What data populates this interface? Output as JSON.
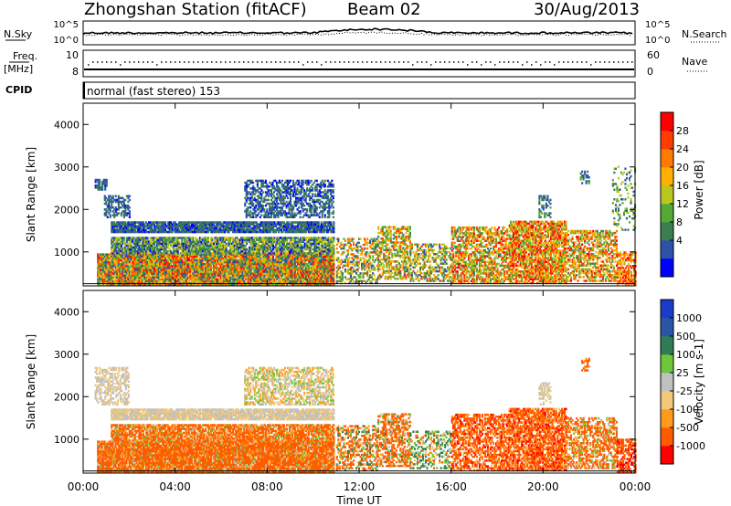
{
  "header": {
    "station": "Zhongshan Station (fitACF)",
    "beam": "Beam 02",
    "date": "30/Aug/2013"
  },
  "status_panels": {
    "nsky_label": "N.Sky",
    "nsearch_label": "N.Search",
    "nsky_ticks": [
      "10^5",
      "10^0"
    ],
    "freq_label_1": "Freq.",
    "freq_label_2": "[MHz]",
    "freq_ticks": [
      "10",
      "8"
    ],
    "nave_label": "Nave",
    "nave_ticks": [
      "60",
      "0"
    ],
    "cpid_label": "CPID",
    "cpid_text": "normal (fast stereo) 153"
  },
  "colors": {
    "power": [
      "#0000ff",
      "#2c53a8",
      "#3b7e52",
      "#55aa33",
      "#b8c81e",
      "#ffb000",
      "#ff7a00",
      "#ff3c00",
      "#ff0000"
    ],
    "velocity": [
      "#ff0000",
      "#ff5c00",
      "#ff9b1c",
      "#f0c878",
      "#c0c0c0",
      "#6fc63a",
      "#2f7d55",
      "#2a55a5",
      "#1c3cc8"
    ]
  },
  "chart_data": [
    {
      "type": "heatmap",
      "name": "power",
      "xlabel": "Time UT",
      "ylabel": "Slant Range [km]",
      "xlim": [
        0,
        24
      ],
      "ylim": [
        200,
        4500
      ],
      "x_ticks": [
        "00:00",
        "04:00",
        "08:00",
        "12:00",
        "16:00",
        "20:00",
        "00:00"
      ],
      "y_ticks": [
        1000,
        2000,
        3000,
        4000
      ],
      "colorbar": {
        "label": "Power [dB]",
        "ticks": [
          "28",
          "24",
          "20",
          "16",
          "12",
          "8",
          "4"
        ],
        "range": [
          0,
          30
        ]
      },
      "regions": [
        {
          "t": [
            0.6,
            10.9
          ],
          "r": [
            200,
            950
          ],
          "v": 16,
          "spread": 12,
          "density": 0.95
        },
        {
          "t": [
            1.2,
            10.9
          ],
          "r": [
            950,
            1350
          ],
          "v": 10,
          "spread": 8,
          "density": 0.85
        },
        {
          "t": [
            1.2,
            10.9
          ],
          "r": [
            1450,
            1700
          ],
          "v": 6,
          "spread": 4,
          "density": 0.9
        },
        {
          "t": [
            0.9,
            2.0
          ],
          "r": [
            1800,
            2300
          ],
          "v": 6,
          "spread": 3,
          "density": 0.5
        },
        {
          "t": [
            7.0,
            10.9
          ],
          "r": [
            1800,
            2700
          ],
          "v": 6,
          "spread": 4,
          "density": 0.55
        },
        {
          "t": [
            0.5,
            1.0
          ],
          "r": [
            2450,
            2700
          ],
          "v": 6,
          "spread": 3,
          "density": 0.6
        },
        {
          "t": [
            11.0,
            12.8
          ],
          "r": [
            250,
            1300
          ],
          "v": 14,
          "spread": 10,
          "density": 0.45
        },
        {
          "t": [
            12.8,
            14.2
          ],
          "r": [
            350,
            1600
          ],
          "v": 16,
          "spread": 10,
          "density": 0.55
        },
        {
          "t": [
            14.2,
            16.0
          ],
          "r": [
            300,
            1200
          ],
          "v": 14,
          "spread": 10,
          "density": 0.45
        },
        {
          "t": [
            16.0,
            18.5
          ],
          "r": [
            250,
            1600
          ],
          "v": 18,
          "spread": 10,
          "density": 0.6
        },
        {
          "t": [
            18.5,
            21.0
          ],
          "r": [
            250,
            1700
          ],
          "v": 20,
          "spread": 10,
          "density": 0.75
        },
        {
          "t": [
            21.0,
            23.2
          ],
          "r": [
            300,
            1500
          ],
          "v": 18,
          "spread": 10,
          "density": 0.55
        },
        {
          "t": [
            23.2,
            24.0
          ],
          "r": [
            200,
            1000
          ],
          "v": 22,
          "spread": 8,
          "density": 0.6
        },
        {
          "t": [
            19.8,
            20.3
          ],
          "r": [
            1800,
            2300
          ],
          "v": 8,
          "spread": 4,
          "density": 0.5
        },
        {
          "t": [
            21.6,
            22.0
          ],
          "r": [
            2600,
            2900
          ],
          "v": 8,
          "spread": 4,
          "density": 0.5
        },
        {
          "t": [
            23.0,
            24.0
          ],
          "r": [
            1500,
            3000
          ],
          "v": 10,
          "spread": 6,
          "density": 0.2
        }
      ]
    },
    {
      "type": "heatmap",
      "name": "velocity",
      "xlabel": "Time UT",
      "ylabel": "Slant Range [km]",
      "xlim": [
        0,
        24
      ],
      "ylim": [
        200,
        4500
      ],
      "x_ticks": [
        "00:00",
        "04:00",
        "08:00",
        "12:00",
        "16:00",
        "20:00",
        "00:00"
      ],
      "y_ticks": [
        1000,
        2000,
        3000,
        4000
      ],
      "colorbar": {
        "label": "Velocity [m s-1]",
        "ticks": [
          "1000",
          "500",
          "100",
          "25",
          "-25",
          "-100",
          "-500",
          "-1000"
        ],
        "levels": [
          -1000,
          -500,
          -100,
          -25,
          0,
          25,
          100,
          500,
          1000
        ]
      },
      "regions": [
        {
          "t": [
            0.6,
            10.9
          ],
          "r": [
            200,
            950
          ],
          "v": -200,
          "spread": 250,
          "density": 0.95
        },
        {
          "t": [
            1.2,
            10.9
          ],
          "r": [
            950,
            1350
          ],
          "v": -150,
          "spread": 200,
          "density": 0.85
        },
        {
          "t": [
            1.2,
            10.9
          ],
          "r": [
            1450,
            1700
          ],
          "v": 0,
          "spread": 20,
          "density": 0.9
        },
        {
          "t": [
            0.5,
            2.0
          ],
          "r": [
            1800,
            2700
          ],
          "v": 0,
          "spread": 20,
          "density": 0.5
        },
        {
          "t": [
            7.0,
            10.9
          ],
          "r": [
            1800,
            2700
          ],
          "v": 0,
          "spread": 40,
          "density": 0.55
        },
        {
          "t": [
            11.0,
            12.8
          ],
          "r": [
            250,
            1300
          ],
          "v": -100,
          "spread": 300,
          "density": 0.45
        },
        {
          "t": [
            12.8,
            14.2
          ],
          "r": [
            350,
            1600
          ],
          "v": -150,
          "spread": 300,
          "density": 0.55
        },
        {
          "t": [
            14.2,
            16.0
          ],
          "r": [
            300,
            1200
          ],
          "v": 60,
          "spread": 200,
          "density": 0.45
        },
        {
          "t": [
            16.0,
            18.5
          ],
          "r": [
            250,
            1600
          ],
          "v": -300,
          "spread": 300,
          "density": 0.6
        },
        {
          "t": [
            18.5,
            21.0
          ],
          "r": [
            250,
            1700
          ],
          "v": -300,
          "spread": 300,
          "density": 0.75
        },
        {
          "t": [
            21.0,
            23.2
          ],
          "r": [
            300,
            1500
          ],
          "v": -200,
          "spread": 300,
          "density": 0.55
        },
        {
          "t": [
            23.2,
            24.0
          ],
          "r": [
            200,
            1000
          ],
          "v": -400,
          "spread": 300,
          "density": 0.6
        },
        {
          "t": [
            19.8,
            20.3
          ],
          "r": [
            1800,
            2300
          ],
          "v": 0,
          "spread": 20,
          "density": 0.5
        },
        {
          "t": [
            21.6,
            22.0
          ],
          "r": [
            2600,
            2900
          ],
          "v": -150,
          "spread": 80,
          "density": 0.5
        }
      ]
    }
  ]
}
